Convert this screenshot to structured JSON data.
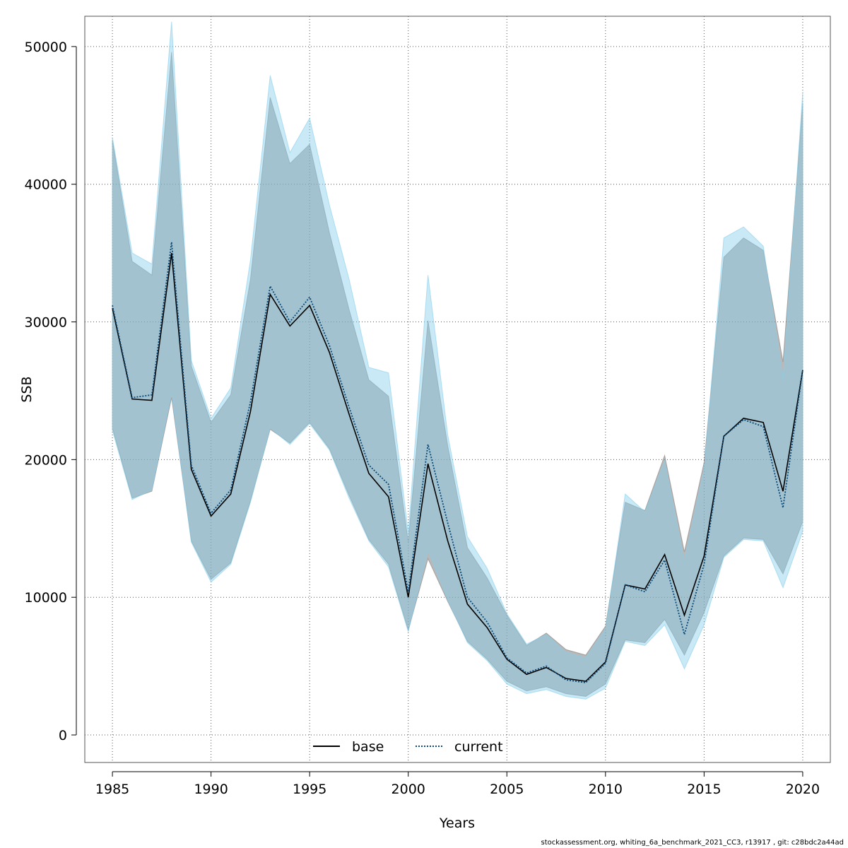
{
  "chart_data": {
    "type": "area",
    "xlabel": "Years",
    "ylabel": "SSB",
    "xlim": [
      1983.6,
      2021.4
    ],
    "ylim": [
      -2000,
      52200
    ],
    "xticks": [
      1985,
      1990,
      1995,
      2000,
      2005,
      2010,
      2015,
      2020
    ],
    "yticks": [
      0,
      10000,
      20000,
      30000,
      40000,
      50000
    ],
    "grid": true,
    "legend": {
      "placement": "bottom-center",
      "entries": [
        "base",
        "current"
      ]
    },
    "x": [
      1985,
      1986,
      1987,
      1988,
      1989,
      1990,
      1991,
      1992,
      1993,
      1994,
      1995,
      1996,
      1997,
      1998,
      1999,
      2000,
      2001,
      2002,
      2003,
      2004,
      2005,
      2006,
      2007,
      2008,
      2009,
      2010,
      2011,
      2012,
      2013,
      2014,
      2015,
      2016,
      2017,
      2018,
      2019,
      2020
    ],
    "series": [
      {
        "name": "base",
        "line_style": "solid",
        "line_color": "#000000",
        "band_color": "#808080",
        "values": [
          31000,
          24400,
          24300,
          35000,
          19300,
          15900,
          17500,
          23500,
          32000,
          29700,
          31200,
          27800,
          23300,
          19000,
          17300,
          10000,
          19700,
          14100,
          9500,
          7800,
          5500,
          4400,
          4900,
          4100,
          3900,
          5300,
          10900,
          10600,
          13100,
          8700,
          13000,
          21700,
          23000,
          22700,
          17700,
          26500
        ],
        "lower": [
          22300,
          17200,
          17700,
          24500,
          14100,
          11300,
          12500,
          17000,
          22200,
          21200,
          22700,
          20800,
          17400,
          14200,
          12400,
          7600,
          12800,
          9700,
          6800,
          5500,
          3900,
          3200,
          3500,
          3000,
          2800,
          3700,
          6900,
          6700,
          8400,
          5800,
          8900,
          13000,
          14300,
          14200,
          11700,
          15500
        ],
        "upper": [
          43200,
          34400,
          33400,
          49600,
          26800,
          22700,
          24700,
          33100,
          46300,
          41500,
          42900,
          36500,
          30900,
          25800,
          24600,
          14000,
          30100,
          21000,
          13600,
          11400,
          8700,
          6500,
          7400,
          6200,
          5800,
          7900,
          16900,
          16300,
          20300,
          13300,
          19800,
          34700,
          36100,
          35200,
          27100,
          45900
        ]
      },
      {
        "name": "current",
        "line_style": "dotted",
        "line_color": "#0a4a7a",
        "band_color": "#87ceeb",
        "values": [
          31200,
          24500,
          24700,
          35800,
          19600,
          16100,
          17800,
          24200,
          32600,
          30000,
          31800,
          28300,
          23800,
          19600,
          18200,
          10400,
          21100,
          15400,
          10000,
          8200,
          5600,
          4500,
          5000,
          4000,
          3800,
          5200,
          10900,
          10400,
          12700,
          7300,
          12400,
          21700,
          22900,
          22400,
          16500,
          26500
        ],
        "lower": [
          22100,
          17100,
          17800,
          24800,
          14000,
          11100,
          12400,
          16900,
          22300,
          21100,
          22600,
          20700,
          17200,
          14100,
          12200,
          7500,
          13400,
          9800,
          6700,
          5400,
          3700,
          3000,
          3300,
          2800,
          2600,
          3400,
          6800,
          6500,
          8000,
          4800,
          8000,
          12900,
          14200,
          14100,
          10700,
          14800
        ],
        "upper": [
          43400,
          35000,
          34200,
          51800,
          27200,
          23000,
          25200,
          34500,
          47900,
          42300,
          44800,
          38500,
          33100,
          26700,
          26300,
          14700,
          33400,
          21800,
          14400,
          12100,
          8800,
          6600,
          7300,
          6000,
          5600,
          7700,
          17500,
          16200,
          19900,
          12600,
          19300,
          36100,
          36900,
          35500,
          25800,
          46700
        ]
      }
    ]
  },
  "footer_text": "stockassessment.org, whiting_6a_benchmark_2021_CC3, r13917 , git: c28bdc2a44ad"
}
